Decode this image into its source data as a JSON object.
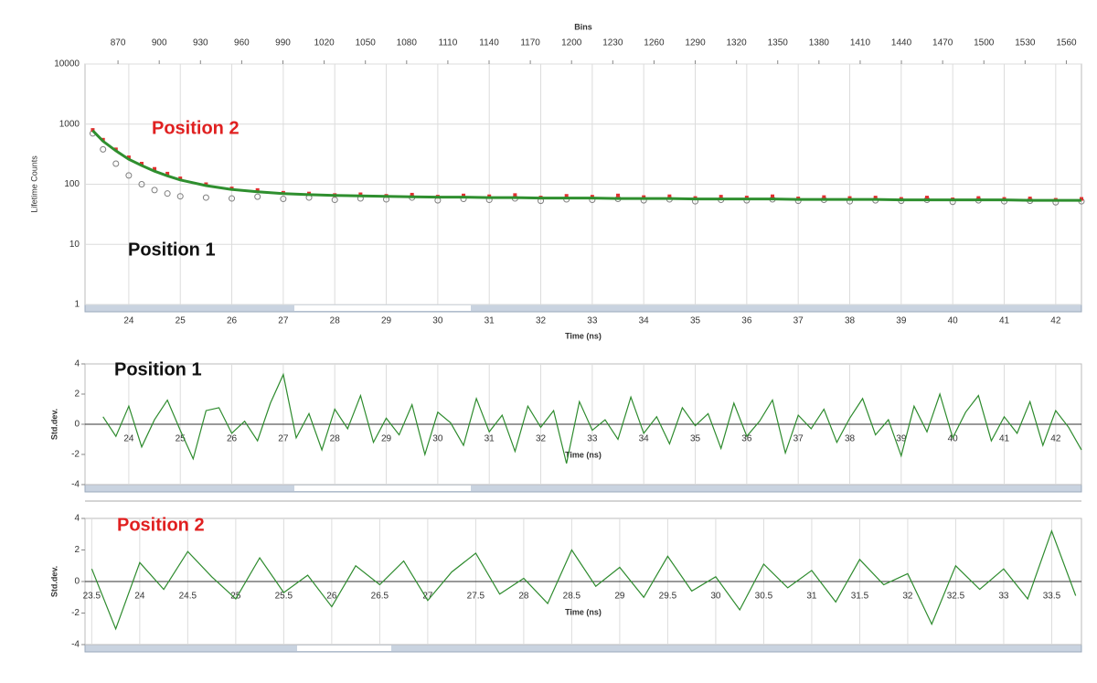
{
  "chart_data": [
    {
      "type": "scatter",
      "yscale": "log",
      "xlabel": "Time (ns)",
      "ylabel": "Lifetime Counts",
      "x2label": "Bins",
      "x": [
        23.3,
        23.5,
        23.75,
        24,
        24.25,
        24.5,
        24.75,
        25,
        25.5,
        26,
        26.5,
        27,
        27.5,
        28,
        28.5,
        29,
        29.5,
        30,
        30.5,
        31,
        31.5,
        32,
        32.5,
        33,
        33.5,
        34,
        34.5,
        35,
        35.5,
        36,
        36.5,
        37,
        37.5,
        38,
        38.5,
        39,
        39.5,
        40,
        40.5,
        41,
        41.5,
        42,
        42.5
      ],
      "xlim": [
        23.15,
        42.5
      ],
      "xticks": [
        24,
        25,
        26,
        27,
        28,
        29,
        30,
        31,
        32,
        33,
        34,
        35,
        36,
        37,
        38,
        39,
        40,
        41,
        42
      ],
      "x2lim": [
        846,
        1571
      ],
      "x2ticks": [
        870,
        900,
        930,
        960,
        990,
        1020,
        1050,
        1080,
        1110,
        1140,
        1170,
        1200,
        1230,
        1260,
        1290,
        1320,
        1350,
        1380,
        1410,
        1440,
        1470,
        1500,
        1530,
        1560
      ],
      "ylim": [
        1,
        10000
      ],
      "yticks": [
        1,
        10,
        100,
        1000,
        10000
      ],
      "grid": true,
      "series": [
        {
          "name": "Position 1",
          "color": "#7f7f7f",
          "marker": "circle",
          "values": [
            700,
            380,
            220,
            140,
            100,
            80,
            70,
            63,
            60,
            58,
            62,
            57,
            60,
            55,
            58,
            56,
            60,
            54,
            57,
            55,
            58,
            53,
            56,
            55,
            57,
            54,
            56,
            52,
            55,
            54,
            56,
            53,
            55,
            52,
            54,
            53,
            55,
            51,
            54,
            52,
            53,
            50,
            52
          ]
        },
        {
          "name": "Position 2",
          "color": "#e03030",
          "marker": "square",
          "values": [
            800,
            550,
            380,
            280,
            220,
            180,
            150,
            125,
            100,
            85,
            80,
            72,
            70,
            66,
            68,
            64,
            67,
            62,
            65,
            63,
            66,
            60,
            64,
            62,
            65,
            61,
            63,
            59,
            62,
            60,
            63,
            58,
            61,
            59,
            60,
            57,
            60,
            56,
            59,
            57,
            58,
            55,
            57
          ]
        },
        {
          "color": "#2f8f2f",
          "marker": "line",
          "values": [
            780,
            520,
            360,
            260,
            205,
            165,
            138,
            118,
            95,
            82,
            75,
            70,
            67,
            65,
            64,
            63,
            62,
            61,
            61,
            60,
            60,
            59,
            59,
            59,
            58,
            58,
            58,
            57,
            57,
            57,
            57,
            56,
            56,
            56,
            56,
            55,
            55,
            55,
            55,
            55,
            54,
            54,
            54
          ]
        }
      ]
    },
    {
      "type": "line",
      "title": "Position 1",
      "xlabel": "Time (ns)",
      "ylabel": "Std.dev.",
      "x": [
        23.5,
        23.75,
        24,
        24.25,
        24.5,
        24.75,
        25,
        25.25,
        25.5,
        25.75,
        26,
        26.25,
        26.5,
        26.75,
        27,
        27.25,
        27.5,
        27.75,
        28,
        28.25,
        28.5,
        28.75,
        29,
        29.25,
        29.5,
        29.75,
        30,
        30.25,
        30.5,
        30.75,
        31,
        31.25,
        31.5,
        31.75,
        32,
        32.25,
        32.5,
        32.75,
        33,
        33.25,
        33.5,
        33.75,
        34,
        34.25,
        34.5,
        34.75,
        35,
        35.25,
        35.5,
        35.75,
        36,
        36.25,
        36.5,
        36.75,
        37,
        37.25,
        37.5,
        37.75,
        38,
        38.25,
        38.5,
        38.75,
        39,
        39.25,
        39.5,
        39.75,
        40,
        40.25,
        40.5,
        40.75,
        41,
        41.25,
        41.5,
        41.75,
        42,
        42.25,
        42.5
      ],
      "xlim": [
        23.15,
        42.5
      ],
      "xticks": [
        24,
        25,
        26,
        27,
        28,
        29,
        30,
        31,
        32,
        33,
        34,
        35,
        36,
        37,
        38,
        39,
        40,
        41,
        42
      ],
      "ylim": [
        -4,
        4
      ],
      "yticks": [
        -4,
        -2,
        0,
        2,
        4
      ],
      "grid": true,
      "series": [
        {
          "color": "#2e8b2e",
          "values": [
            0.5,
            -0.8,
            1.2,
            -1.5,
            0.3,
            1.6,
            -0.4,
            -2.3,
            0.9,
            1.1,
            -0.6,
            0.2,
            -1.1,
            1.4,
            3.3,
            -0.9,
            0.7,
            -1.7,
            1.0,
            -0.3,
            1.9,
            -1.2,
            0.4,
            -0.7,
            1.3,
            -2.0,
            0.8,
            0.1,
            -1.4,
            1.7,
            -0.5,
            0.6,
            -1.8,
            1.2,
            -0.2,
            0.9,
            -2.6,
            1.5,
            -0.4,
            0.3,
            -1.0,
            1.8,
            -0.6,
            0.5,
            -1.3,
            1.1,
            -0.1,
            0.7,
            -1.6,
            1.4,
            -0.8,
            0.2,
            1.6,
            -1.9,
            0.6,
            -0.3,
            1.0,
            -1.2,
            0.4,
            1.7,
            -0.7,
            0.3,
            -2.1,
            1.2,
            -0.5,
            2.0,
            -0.9,
            0.8,
            1.9,
            -1.1,
            0.5,
            -0.6,
            1.5,
            -1.4,
            0.9,
            -0.2,
            -1.7
          ]
        }
      ]
    },
    {
      "type": "line",
      "title": "Position 2",
      "xlabel": "Time (ns)",
      "ylabel": "Std.dev.",
      "x": [
        23.5,
        23.75,
        24,
        24.25,
        24.5,
        24.75,
        25,
        25.25,
        25.5,
        25.75,
        26,
        26.25,
        26.5,
        26.75,
        27,
        27.25,
        27.5,
        27.75,
        28,
        28.25,
        28.5,
        28.75,
        29,
        29.25,
        29.5,
        29.75,
        30,
        30.25,
        30.5,
        30.75,
        31,
        31.25,
        31.5,
        31.75,
        32,
        32.25,
        32.5,
        32.75,
        33,
        33.25,
        33.5,
        33.75
      ],
      "xlim": [
        23.43,
        33.81
      ],
      "xticks": [
        23.5,
        24,
        24.5,
        25,
        25.5,
        26,
        26.5,
        27,
        27.5,
        28,
        28.5,
        29,
        29.5,
        30,
        30.5,
        31,
        31.5,
        32,
        32.5,
        33,
        33.5
      ],
      "ylim": [
        -4,
        4
      ],
      "yticks": [
        -4,
        -2,
        0,
        2,
        4
      ],
      "grid": true,
      "series": [
        {
          "color": "#2e8b2e",
          "values": [
            0.8,
            -3.0,
            1.2,
            -0.5,
            1.9,
            0.3,
            -1.1,
            1.5,
            -0.7,
            0.4,
            -1.6,
            1.0,
            -0.2,
            1.3,
            -1.2,
            0.6,
            1.8,
            -0.8,
            0.2,
            -1.4,
            2.0,
            -0.3,
            0.9,
            -1.0,
            1.6,
            -0.6,
            0.3,
            -1.8,
            1.1,
            -0.4,
            0.7,
            -1.3,
            1.4,
            -0.2,
            0.5,
            -2.7,
            1.0,
            -0.5,
            0.8,
            -1.1,
            3.2,
            -0.9
          ]
        }
      ]
    }
  ]
}
